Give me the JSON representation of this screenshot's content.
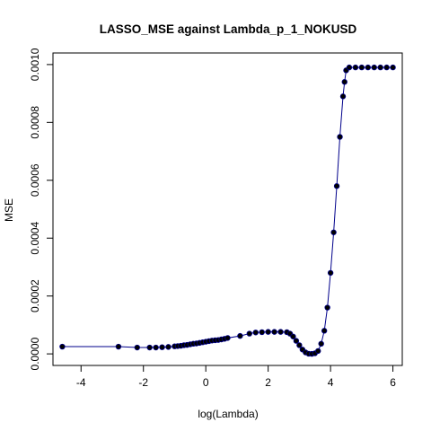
{
  "chart_data": {
    "type": "line",
    "title": "LASSO_MSE against Lambda_p_1_NOKUSD",
    "xlabel": "log(Lambda)",
    "ylabel": "MSE",
    "xlim": [
      -4.9,
      6.3
    ],
    "ylim": [
      -4e-05,
      0.00104
    ],
    "x_ticks": [
      -4,
      -2,
      0,
      2,
      4,
      6
    ],
    "x_tick_labels": [
      "-4",
      "-2",
      "0",
      "2",
      "4",
      "6"
    ],
    "y_ticks": [
      0.0,
      0.0002,
      0.0004,
      0.0006,
      0.0008,
      0.001
    ],
    "y_tick_labels": [
      "0.0000",
      "0.0002",
      "0.0004",
      "0.0006",
      "0.0008",
      "0.0010"
    ],
    "grid": false,
    "line_color": "#00008B",
    "point_color": "#000000",
    "series": [
      {
        "x": [
          -4.6,
          -2.8,
          -2.2,
          -1.8,
          -1.6,
          -1.4,
          -1.2,
          -1.0,
          -0.9,
          -0.8,
          -0.7,
          -0.6,
          -0.5,
          -0.4,
          -0.3,
          -0.2,
          -0.1,
          0.0,
          0.1,
          0.2,
          0.3,
          0.4,
          0.5,
          0.6,
          0.7,
          1.1,
          1.4,
          1.6,
          1.8,
          2.0,
          2.2,
          2.4,
          2.6,
          2.7,
          2.8,
          2.9,
          3.0,
          3.1,
          3.2,
          3.3,
          3.4,
          3.5,
          3.6,
          3.7,
          3.8,
          3.9,
          4.0,
          4.1,
          4.2,
          4.3,
          4.4,
          4.45,
          4.5,
          4.6,
          4.8,
          5.0,
          5.2,
          5.4,
          5.6,
          5.8,
          6.0
        ],
        "y": [
          2.5e-05,
          2.5e-05,
          2.2e-05,
          2.2e-05,
          2.2e-05,
          2.3e-05,
          2.4e-05,
          2.6e-05,
          2.7e-05,
          2.8e-05,
          3e-05,
          3.1e-05,
          3.3e-05,
          3.5e-05,
          3.6e-05,
          3.8e-05,
          4e-05,
          4.2e-05,
          4.4e-05,
          4.6e-05,
          4.7e-05,
          4.8e-05,
          5e-05,
          5.2e-05,
          5.5e-05,
          6.2e-05,
          7e-05,
          7.4e-05,
          7.5e-05,
          7.6e-05,
          7.6e-05,
          7.6e-05,
          7.5e-05,
          7e-05,
          6e-05,
          4.5e-05,
          3e-05,
          1.5e-05,
          5e-06,
          5e-07,
          0.0,
          2e-06,
          1e-05,
          3.5e-05,
          8e-05,
          0.00016,
          0.00028,
          0.00042,
          0.00058,
          0.00075,
          0.00089,
          0.00094,
          0.00098,
          0.00099,
          0.00099,
          0.00099,
          0.00099,
          0.00099,
          0.00099,
          0.00099,
          0.00099
        ]
      }
    ]
  }
}
